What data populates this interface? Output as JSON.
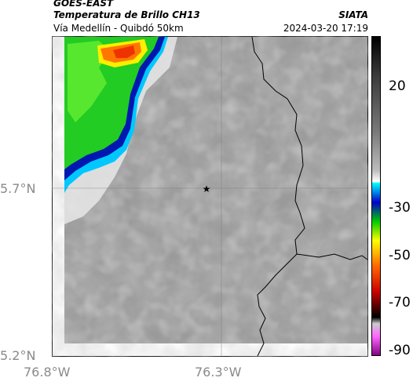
{
  "header": {
    "satellite": "GOES-EAST",
    "product": "Temperatura de Brillo CH13",
    "region": "Vía Medellín - Quibdó 50km",
    "org": "SIATA",
    "timestamp": "2024-03-20 17:19"
  },
  "axes": {
    "y_ticks": [
      "5.7°N",
      "5.2°N"
    ],
    "x_ticks": [
      "76.8°W",
      "76.3°W"
    ]
  },
  "colorbar": {
    "ticks": [
      "20",
      "-30",
      "-50",
      "-70",
      "-90"
    ],
    "colors": [
      "#000000",
      "#3a3a3a",
      "#7a7a7a",
      "#bdbdbd",
      "#ffffff",
      "#00ffff",
      "#0000cc",
      "#00cc00",
      "#ffff00",
      "#ff6600",
      "#cc0000",
      "#000000",
      "#ff66ff",
      "#800080"
    ]
  },
  "map": {
    "marker": "star-icon"
  }
}
